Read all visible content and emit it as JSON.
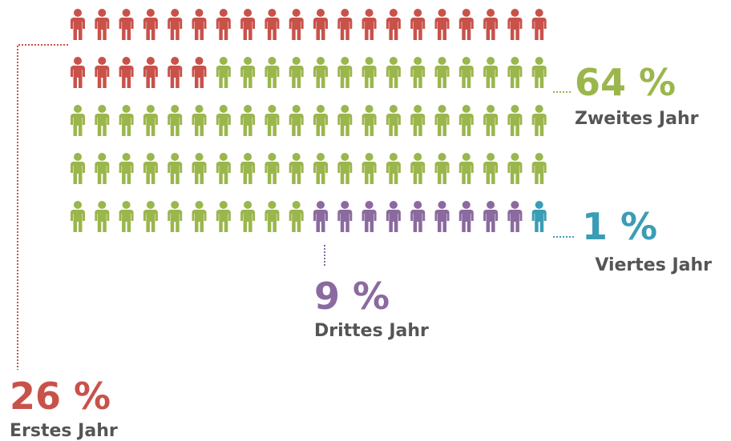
{
  "chart_data": {
    "type": "pictogram",
    "categories": [
      "Erstes Jahr",
      "Zweites Jahr",
      "Drittes Jahr",
      "Viertes Jahr"
    ],
    "values": [
      26,
      64,
      9,
      1
    ],
    "value_labels": [
      "26 %",
      "64 %",
      "9 %",
      "1 %"
    ],
    "colors": [
      "#c8524a",
      "#9bb64c",
      "#8b6a9f",
      "#3b9db5"
    ]
  }
}
